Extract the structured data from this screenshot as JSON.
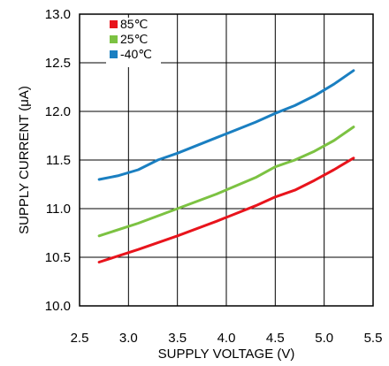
{
  "chart_data": {
    "type": "line",
    "title": "",
    "xlabel": "SUPPLY VOLTAGE (V)",
    "ylabel": "SUPPLY CURRENT (μA)",
    "xlim": [
      2.5,
      5.5
    ],
    "ylim": [
      10.0,
      13.0
    ],
    "x_ticks": [
      "2.5",
      "3.0",
      "3.5",
      "4.0",
      "4.5",
      "5.0",
      "5.5"
    ],
    "y_ticks": [
      "10.0",
      "10.5",
      "11.0",
      "11.5",
      "12.0",
      "12.5",
      "13.0"
    ],
    "grid": true,
    "legend_position": "top-left",
    "series": [
      {
        "name": "85℃",
        "color": "#e8141c",
        "x": [
          2.7,
          3.1,
          3.5,
          3.9,
          4.3,
          4.5,
          4.7,
          4.9,
          5.1,
          5.3
        ],
        "y": [
          10.45,
          10.58,
          10.72,
          10.87,
          11.03,
          11.12,
          11.19,
          11.29,
          11.4,
          11.52
        ]
      },
      {
        "name": "25℃",
        "color": "#7cc242",
        "x": [
          2.7,
          3.1,
          3.5,
          3.9,
          4.3,
          4.5,
          4.7,
          4.9,
          5.1,
          5.3
        ],
        "y": [
          10.72,
          10.85,
          11.0,
          11.15,
          11.32,
          11.43,
          11.5,
          11.59,
          11.7,
          11.84
        ]
      },
      {
        "name": "-40℃",
        "color": "#1a7fc1",
        "x": [
          2.7,
          2.9,
          3.1,
          3.3,
          3.5,
          3.9,
          4.3,
          4.5,
          4.7,
          4.9,
          5.1,
          5.3
        ],
        "y": [
          11.3,
          11.34,
          11.4,
          11.5,
          11.57,
          11.73,
          11.89,
          11.98,
          12.06,
          12.16,
          12.28,
          12.42
        ]
      }
    ]
  }
}
